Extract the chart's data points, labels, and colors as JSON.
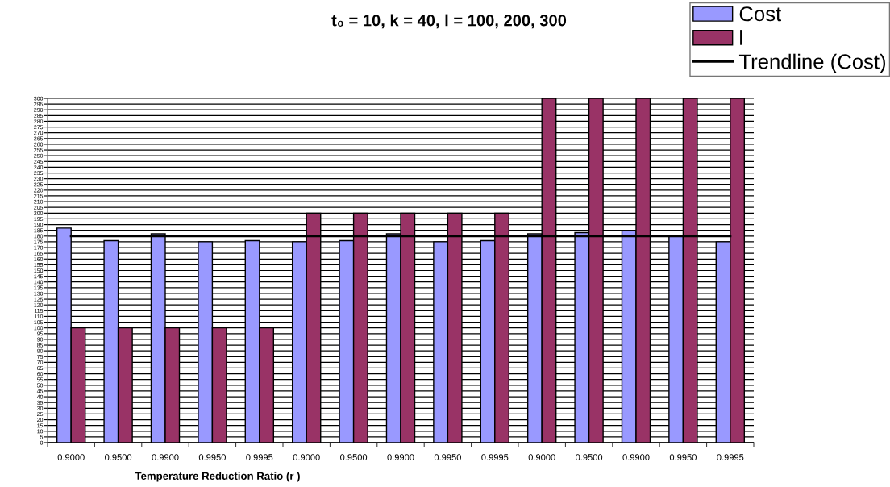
{
  "chart_data": {
    "type": "bar",
    "title": "t₀ = 10, k = 40, l = 100, 200, 300",
    "xlabel": "Temperature Reduction Ratio (r )",
    "categories": [
      "0.9000",
      "0.9500",
      "0.9900",
      "0.9950",
      "0.9995",
      "0.9000",
      "0.9500",
      "0.9900",
      "0.9950",
      "0.9995",
      "0.9000",
      "0.9500",
      "0.9900",
      "0.9950",
      "0.9995"
    ],
    "series": [
      {
        "name": "Cost",
        "color": "#9999ff",
        "values": [
          187,
          176,
          182,
          175,
          176,
          175,
          176,
          182,
          175,
          176,
          182,
          183,
          185,
          180,
          175
        ]
      },
      {
        "name": "l",
        "color": "#993366",
        "values": [
          100,
          100,
          100,
          100,
          100,
          200,
          200,
          200,
          200,
          200,
          300,
          300,
          300,
          300,
          300
        ]
      },
      {
        "name": "Trendline (Cost)",
        "type": "line",
        "color": "#000000",
        "values": [
          180,
          180,
          180,
          180,
          180,
          180,
          180,
          180,
          180,
          180,
          180,
          180,
          180,
          180,
          180
        ]
      }
    ],
    "ylim": [
      0,
      300
    ],
    "yticks": [
      0,
      5,
      10,
      15,
      20,
      25,
      30,
      35,
      40,
      45,
      50,
      55,
      60,
      65,
      70,
      75,
      80,
      85,
      90,
      95,
      100,
      105,
      110,
      115,
      120,
      125,
      130,
      135,
      140,
      145,
      150,
      155,
      160,
      165,
      170,
      175,
      180,
      185,
      190,
      195,
      200,
      205,
      210,
      215,
      220,
      225,
      230,
      235,
      240,
      245,
      250,
      255,
      260,
      265,
      270,
      275,
      280,
      285,
      290,
      295,
      300
    ],
    "grid": "y",
    "legend": "top right"
  }
}
